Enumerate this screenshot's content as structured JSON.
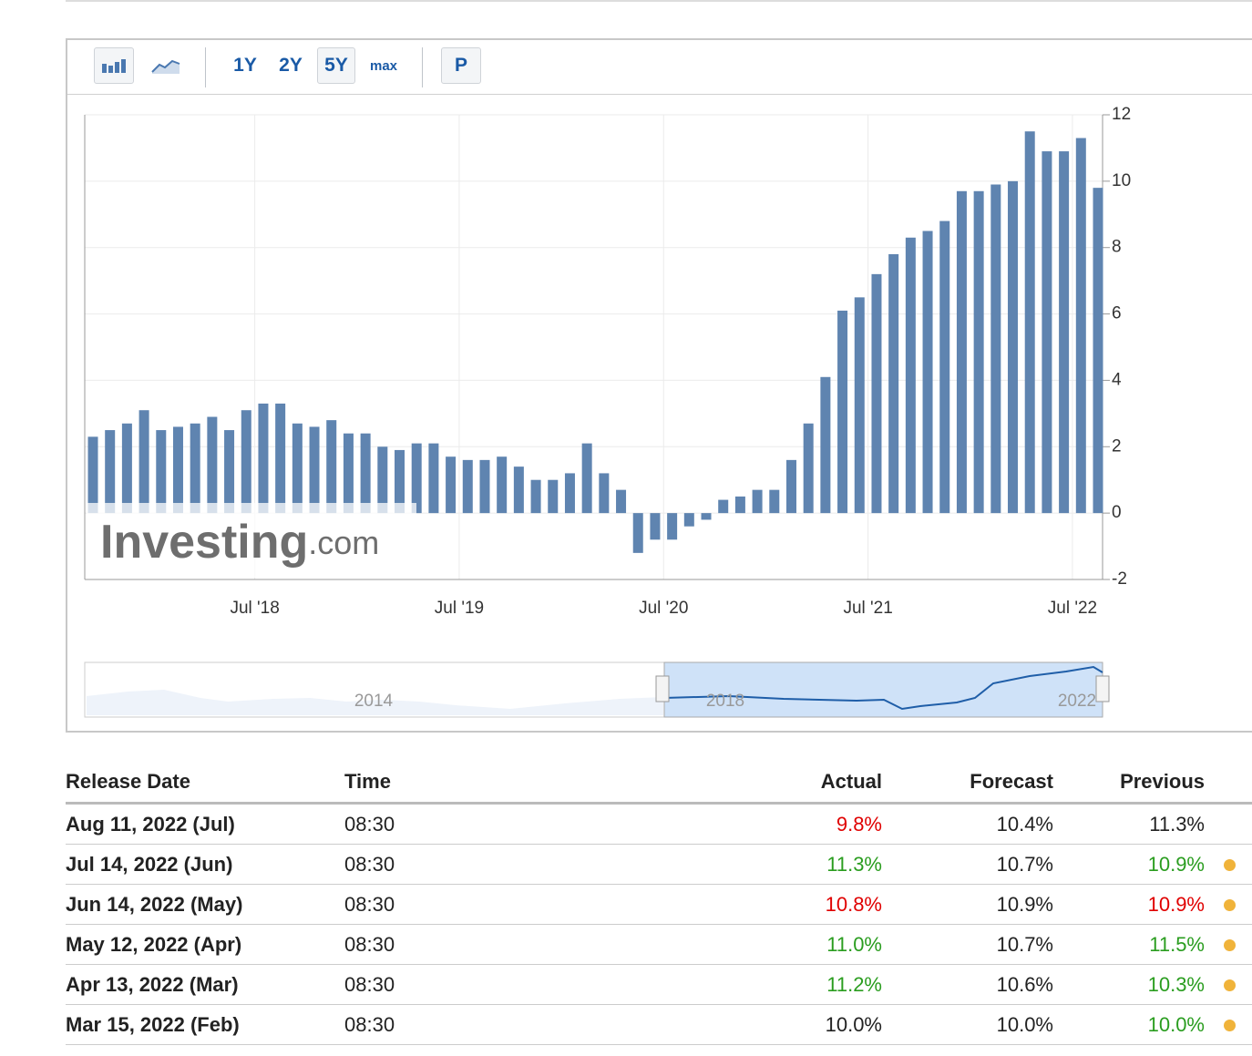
{
  "toolbar": {
    "ranges": [
      "1Y",
      "2Y",
      "5Y",
      "max"
    ],
    "selected": "5Y",
    "print": "P"
  },
  "chart_data": {
    "type": "bar",
    "color": "#5f84b0",
    "categories": [
      null,
      null,
      null,
      null,
      null,
      null,
      null,
      null,
      null,
      null,
      "Jul '18",
      null,
      null,
      null,
      null,
      null,
      null,
      null,
      null,
      null,
      null,
      null,
      "Jul '19",
      null,
      null,
      null,
      null,
      null,
      null,
      null,
      null,
      null,
      null,
      null,
      "Jul '20",
      null,
      null,
      null,
      null,
      null,
      null,
      null,
      null,
      null,
      null,
      null,
      "Jul '21",
      null,
      null,
      null,
      null,
      null,
      null,
      null,
      null,
      null,
      null,
      null,
      "Jul '22",
      null
    ],
    "values": [
      2.3,
      2.5,
      2.7,
      3.1,
      2.5,
      2.6,
      2.7,
      2.9,
      2.5,
      3.1,
      3.3,
      3.3,
      2.7,
      2.6,
      2.8,
      2.4,
      2.4,
      2.0,
      1.9,
      2.1,
      2.1,
      1.7,
      1.6,
      1.6,
      1.7,
      1.4,
      1.0,
      1.0,
      1.2,
      2.1,
      1.2,
      0.7,
      -1.2,
      -0.8,
      -0.8,
      -0.4,
      -0.2,
      0.4,
      0.5,
      0.7,
      0.7,
      1.6,
      2.7,
      4.1,
      6.1,
      6.5,
      7.2,
      7.8,
      8.3,
      8.5,
      8.8,
      9.7,
      9.7,
      9.9,
      10.0,
      11.5,
      10.9,
      10.9,
      11.3,
      9.8
    ],
    "ylim": [
      -2,
      12
    ],
    "yticks": [
      -2,
      0,
      2,
      4,
      6,
      8,
      10,
      12
    ],
    "grid": true
  },
  "watermark": {
    "brand": "Investing",
    "suffix": ".com"
  },
  "navigator": {
    "labels": [
      "2014",
      "2018",
      "2022"
    ]
  },
  "table": {
    "headers": [
      "Release Date",
      "Time",
      "Actual",
      "Forecast",
      "Previous"
    ],
    "rows": [
      {
        "date": "Aug 11, 2022 (Jul)",
        "time": "08:30",
        "actual": "9.8%",
        "actual_color": "#e00000",
        "forecast": "10.4%",
        "previous": "11.3%",
        "previous_color": "#222222",
        "revised": false
      },
      {
        "date": "Jul 14, 2022 (Jun)",
        "time": "08:30",
        "actual": "11.3%",
        "actual_color": "#2a9d1f",
        "forecast": "10.7%",
        "previous": "10.9%",
        "previous_color": "#2a9d1f",
        "revised": true
      },
      {
        "date": "Jun 14, 2022 (May)",
        "time": "08:30",
        "actual": "10.8%",
        "actual_color": "#e00000",
        "forecast": "10.9%",
        "previous": "10.9%",
        "previous_color": "#e00000",
        "revised": true
      },
      {
        "date": "May 12, 2022 (Apr)",
        "time": "08:30",
        "actual": "11.0%",
        "actual_color": "#2a9d1f",
        "forecast": "10.7%",
        "previous": "11.5%",
        "previous_color": "#2a9d1f",
        "revised": true
      },
      {
        "date": "Apr 13, 2022 (Mar)",
        "time": "08:30",
        "actual": "11.2%",
        "actual_color": "#2a9d1f",
        "forecast": "10.6%",
        "previous": "10.3%",
        "previous_color": "#2a9d1f",
        "revised": true
      },
      {
        "date": "Mar 15, 2022 (Feb)",
        "time": "08:30",
        "actual": "10.0%",
        "actual_color": "#222222",
        "forecast": "10.0%",
        "previous": "10.0%",
        "previous_color": "#2a9d1f",
        "revised": true
      }
    ]
  }
}
